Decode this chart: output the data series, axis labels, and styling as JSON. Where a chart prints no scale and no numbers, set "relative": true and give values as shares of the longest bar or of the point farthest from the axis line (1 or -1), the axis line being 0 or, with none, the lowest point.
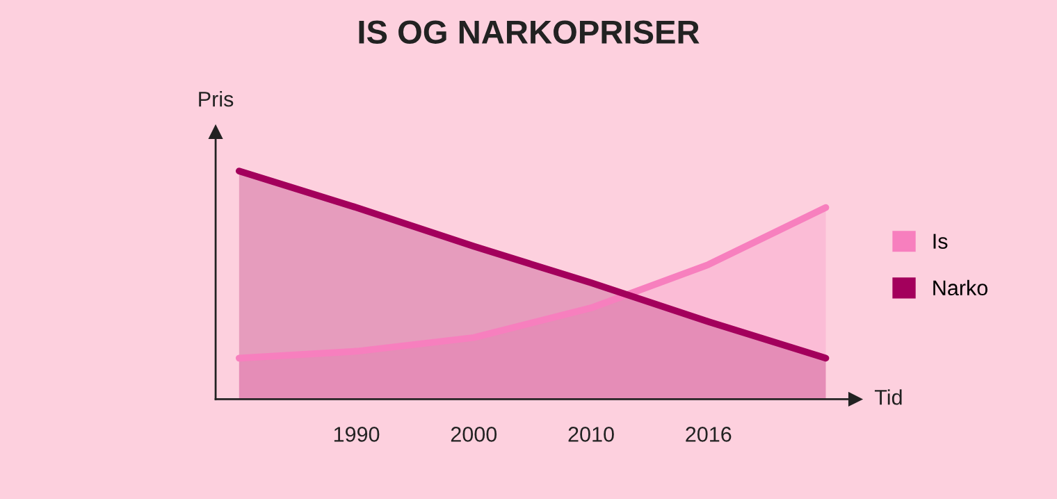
{
  "chart_data": {
    "type": "area",
    "title": "IS OG NARKOPRISER",
    "xlabel": "Tid",
    "ylabel": "Pris",
    "relative": true,
    "categories": [
      null,
      "1990",
      "2000",
      "2010",
      "2016",
      null
    ],
    "series": [
      {
        "name": "Is",
        "color": "#f77fbe",
        "values": [
          0.18,
          0.21,
          0.27,
          0.4,
          0.59,
          0.84
        ]
      },
      {
        "name": "Narko",
        "color": "#a3005c",
        "values": [
          1.0,
          0.84,
          0.67,
          0.51,
          0.34,
          0.18
        ]
      }
    ],
    "legend": "right"
  }
}
